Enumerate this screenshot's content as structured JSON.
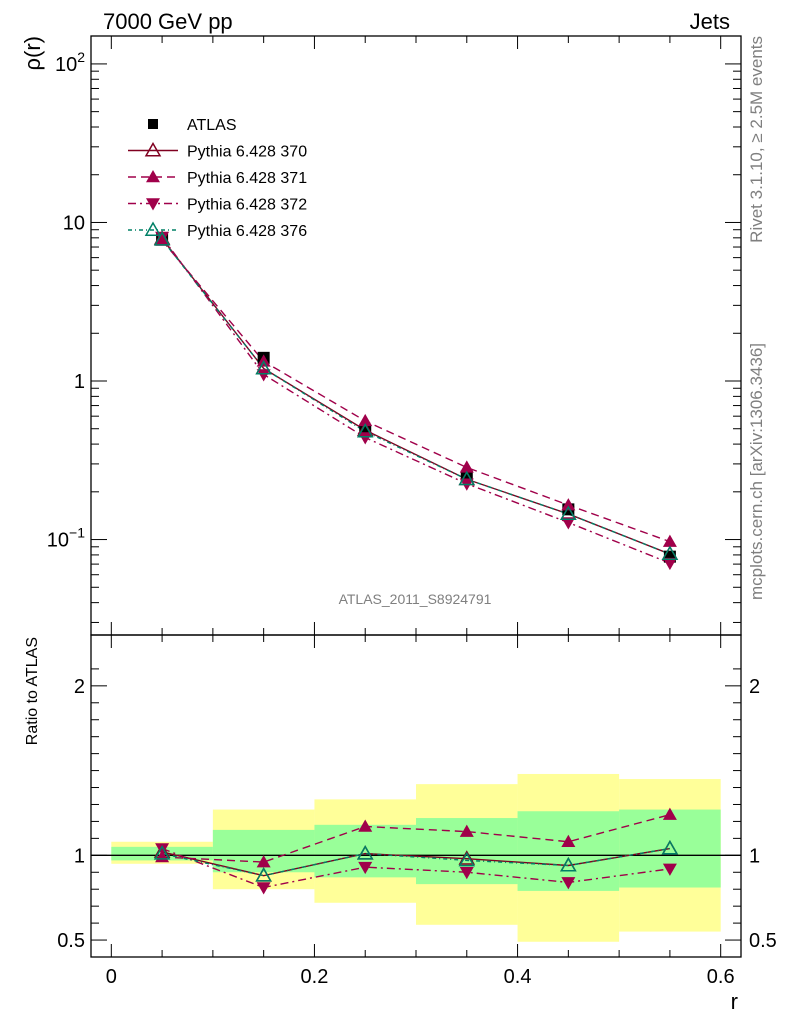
{
  "header": {
    "left": "7000 GeV pp",
    "right": "Jets"
  },
  "side_labels": {
    "rivet": "Rivet 3.1.10, ≥ 2.5M events",
    "mcplots": "mcplots.cern.ch [arXiv:1306.3436]"
  },
  "analysis_label": "ATLAS_2011_S8924791",
  "chart_data": {
    "type": "scatter",
    "x": [
      0.05,
      0.15,
      0.25,
      0.35,
      0.45,
      0.55
    ],
    "bin_edges": [
      0.0,
      0.1,
      0.2,
      0.3,
      0.4,
      0.5,
      0.6
    ],
    "xlabel": "r",
    "xlim": [
      -0.02,
      0.62
    ],
    "x_ticks": [
      "0",
      "0.2",
      "0.4",
      "0.6"
    ],
    "top": {
      "ylabel": "ρ(r)",
      "yscale": "log",
      "ylim": [
        0.025,
        150
      ],
      "y_ticks": [
        {
          "v": 100,
          "base": "10",
          "exp": "2"
        },
        {
          "v": 10,
          "base": "10",
          "exp": ""
        },
        {
          "v": 1,
          "base": "1",
          "exp": ""
        },
        {
          "v": 0.1,
          "base": "10",
          "exp": "−1"
        }
      ]
    },
    "bottom": {
      "ylabel": "Ratio to ATLAS",
      "ylim": [
        0.4,
        2.3
      ],
      "y_ticks": [
        "2",
        "1",
        "0.5"
      ],
      "y_tick_values": [
        2,
        1,
        0.5
      ],
      "band_inner": [
        [
          0.97,
          1.05
        ],
        [
          0.9,
          1.15
        ],
        [
          0.87,
          1.18
        ],
        [
          0.83,
          1.22
        ],
        [
          0.79,
          1.26
        ],
        [
          0.81,
          1.27
        ]
      ],
      "band_outer": [
        [
          0.95,
          1.08
        ],
        [
          0.8,
          1.27
        ],
        [
          0.72,
          1.33
        ],
        [
          0.59,
          1.42
        ],
        [
          0.49,
          1.48
        ],
        [
          0.55,
          1.45
        ]
      ]
    },
    "legend_placement": "top-left",
    "series": [
      {
        "name": "ATLAS",
        "key": "atlas",
        "marker": "square",
        "color": "#000000",
        "values": [
          7.8,
          1.4,
          0.48,
          0.25,
          0.155,
          0.078
        ]
      },
      {
        "name": "Pythia 6.428 370",
        "key": "p370",
        "marker": "triangle-up-open",
        "color": "#800020",
        "dash": "solid",
        "values": [
          7.9,
          1.2,
          0.49,
          0.24,
          0.145,
          0.081
        ],
        "ratio": [
          1.02,
          0.88,
          1.01,
          0.98,
          0.94,
          1.04
        ]
      },
      {
        "name": "Pythia 6.428 371",
        "key": "p371",
        "marker": "triangle-up",
        "color": "#a0004a",
        "dash": "dashed",
        "values": [
          7.7,
          1.33,
          0.56,
          0.285,
          0.165,
          0.097
        ],
        "ratio": [
          0.99,
          0.96,
          1.17,
          1.14,
          1.08,
          1.24
        ]
      },
      {
        "name": "Pythia 6.428 372",
        "key": "p372",
        "marker": "triangle-down",
        "color": "#a0004a",
        "dash": "dashdot",
        "values": [
          8.1,
          1.1,
          0.44,
          0.225,
          0.128,
          0.071
        ],
        "ratio": [
          1.04,
          0.81,
          0.93,
          0.9,
          0.84,
          0.92
        ]
      },
      {
        "name": "Pythia 6.428 376",
        "key": "p376",
        "marker": "triangle-up-open",
        "color": "#008066",
        "dash": "dashdotted-fine",
        "values": [
          7.8,
          1.2,
          0.48,
          0.24,
          0.145,
          0.081
        ],
        "ratio": [
          1.01,
          0.88,
          1.01,
          0.97,
          0.94,
          1.04
        ]
      }
    ]
  }
}
